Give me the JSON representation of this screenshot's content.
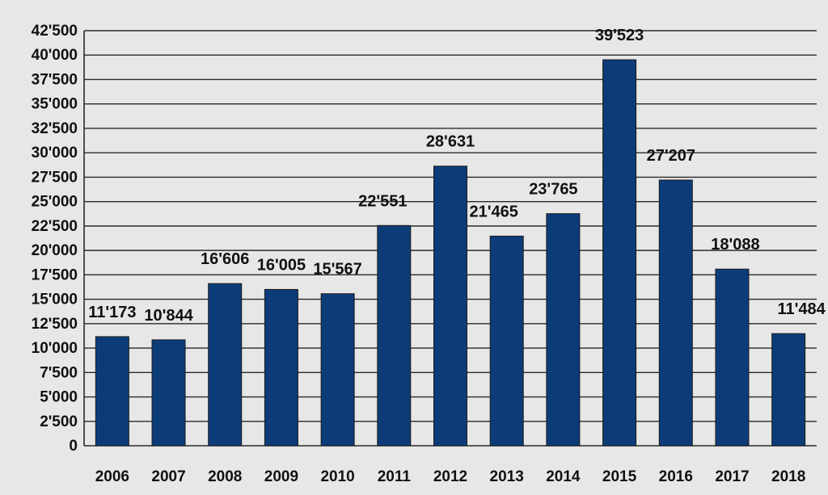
{
  "chart_data": {
    "type": "bar",
    "title": "",
    "xlabel": "",
    "ylabel": "",
    "categories": [
      "2006",
      "2007",
      "2008",
      "2009",
      "2010",
      "2011",
      "2012",
      "2013",
      "2014",
      "2015",
      "2016",
      "2017",
      "2018"
    ],
    "values": [
      11173,
      10844,
      16606,
      16005,
      15567,
      22551,
      28631,
      21465,
      23765,
      39523,
      27207,
      18088,
      11484
    ],
    "data_labels": [
      "11'173",
      "10'844",
      "16'606",
      "16'005",
      "15'567",
      "22'551",
      "28'631",
      "21'465",
      "23'765",
      "39'523",
      "27'207",
      "18'088",
      "11'484"
    ],
    "ylim": [
      0,
      42500
    ],
    "y_ticks": [
      0,
      2500,
      5000,
      7500,
      10000,
      12500,
      15000,
      17500,
      20000,
      22500,
      25000,
      27500,
      30000,
      32500,
      35000,
      37500,
      40000,
      42500
    ],
    "y_tick_labels": [
      "0",
      "2'500",
      "5'000",
      "7'500",
      "10'000",
      "12'500",
      "15'000",
      "17'500",
      "20'000",
      "22'500",
      "25'000",
      "27'500",
      "30'000",
      "32'500",
      "35'000",
      "37'500",
      "40'000",
      "42'500"
    ],
    "grid": true,
    "legend": "none",
    "colors": {
      "bar": "#0c3c78",
      "background": "#e7e7e7",
      "grid": "#2a2a2a"
    }
  }
}
